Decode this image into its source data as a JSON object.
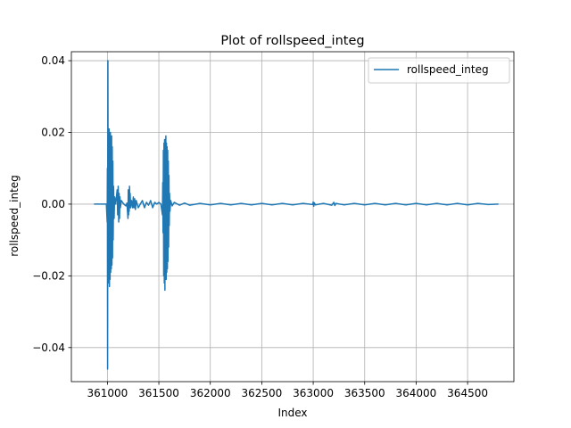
{
  "chart_data": {
    "type": "line",
    "title": "Plot of rollspeed_integ",
    "xlabel": "Index",
    "ylabel": "rollspeed_integ",
    "xlim": [
      360650,
      364950
    ],
    "ylim": [
      -0.0495,
      0.0425
    ],
    "x_ticks": [
      361000,
      361500,
      362000,
      362500,
      363000,
      363500,
      364000,
      364500
    ],
    "x_tick_labels": [
      "361000",
      "361500",
      "362000",
      "362500",
      "363000",
      "363500",
      "364000",
      "364500"
    ],
    "y_ticks": [
      -0.04,
      -0.02,
      0.0,
      0.02,
      0.04
    ],
    "y_tick_labels": [
      "−0.04",
      "−0.02",
      "0.00",
      "0.02",
      "0.04"
    ],
    "grid": true,
    "legend_position": "top-right",
    "series": [
      {
        "name": "rollspeed_integ",
        "color": "#1f77b4",
        "points": [
          [
            360870,
            0.0
          ],
          [
            360970,
            0.0
          ],
          [
            360990,
            0.0
          ],
          [
            360998,
            -0.005
          ],
          [
            361000,
            0.01
          ],
          [
            361002,
            -0.046
          ],
          [
            361005,
            0.04
          ],
          [
            361008,
            -0.022
          ],
          [
            361011,
            0.019
          ],
          [
            361014,
            -0.02
          ],
          [
            361017,
            0.021
          ],
          [
            361020,
            -0.023
          ],
          [
            361023,
            0.018
          ],
          [
            361026,
            -0.021
          ],
          [
            361029,
            0.02
          ],
          [
            361032,
            -0.019
          ],
          [
            361035,
            0.017
          ],
          [
            361038,
            -0.018
          ],
          [
            361041,
            0.019
          ],
          [
            361044,
            -0.017
          ],
          [
            361047,
            0.016
          ],
          [
            361050,
            -0.015
          ],
          [
            361053,
            0.012
          ],
          [
            361056,
            -0.01
          ],
          [
            361060,
            0.005
          ],
          [
            361065,
            -0.004
          ],
          [
            361070,
            0.002
          ],
          [
            361080,
            0.0
          ],
          [
            361095,
            0.004
          ],
          [
            361100,
            -0.003
          ],
          [
            361105,
            0.005
          ],
          [
            361110,
            -0.005
          ],
          [
            361114,
            0.003
          ],
          [
            361118,
            -0.004
          ],
          [
            361122,
            0.002
          ],
          [
            361126,
            -0.001
          ],
          [
            361135,
            0.001
          ],
          [
            361160,
            0.0
          ],
          [
            361180,
            -0.0005
          ],
          [
            361190,
            0.0003
          ],
          [
            361200,
            -0.004
          ],
          [
            361203,
            0.004
          ],
          [
            361206,
            -0.003
          ],
          [
            361209,
            0.004
          ],
          [
            361212,
            -0.002
          ],
          [
            361215,
            0.005
          ],
          [
            361218,
            -0.001
          ],
          [
            361221,
            0.003
          ],
          [
            361226,
            -0.001
          ],
          [
            361235,
            0.001
          ],
          [
            361245,
            -0.001
          ],
          [
            361252,
            0.002
          ],
          [
            361258,
            -0.001
          ],
          [
            361265,
            0.0015
          ],
          [
            361272,
            -0.0015
          ],
          [
            361280,
            0.001
          ],
          [
            361300,
            -0.001
          ],
          [
            361320,
            0.0
          ],
          [
            361340,
            0.001
          ],
          [
            361360,
            -0.001
          ],
          [
            361380,
            0.0005
          ],
          [
            361400,
            -0.0003
          ],
          [
            361420,
            0.001
          ],
          [
            361440,
            -0.001
          ],
          [
            361460,
            0.0005
          ],
          [
            361480,
            0.0
          ],
          [
            361500,
            0.0005
          ],
          [
            361520,
            0.0
          ],
          [
            361535,
            -0.003
          ],
          [
            361538,
            0.006
          ],
          [
            361541,
            -0.008
          ],
          [
            361544,
            0.015
          ],
          [
            361547,
            -0.02
          ],
          [
            361550,
            0.017
          ],
          [
            361553,
            -0.022
          ],
          [
            361556,
            0.018
          ],
          [
            361559,
            -0.024
          ],
          [
            361562,
            0.018
          ],
          [
            361565,
            -0.02
          ],
          [
            361568,
            0.019
          ],
          [
            361571,
            -0.021
          ],
          [
            361574,
            0.017
          ],
          [
            361577,
            -0.019
          ],
          [
            361580,
            0.016
          ],
          [
            361583,
            -0.018
          ],
          [
            361586,
            0.015
          ],
          [
            361589,
            -0.016
          ],
          [
            361592,
            0.012
          ],
          [
            361595,
            -0.012
          ],
          [
            361598,
            0.008
          ],
          [
            361601,
            -0.006
          ],
          [
            361604,
            0.003
          ],
          [
            361608,
            -0.002
          ],
          [
            361615,
            0.001
          ],
          [
            361630,
            -0.0005
          ],
          [
            361650,
            0.0005
          ],
          [
            361700,
            -0.0003
          ],
          [
            361750,
            0.0003
          ],
          [
            361800,
            -0.0003
          ],
          [
            361900,
            0.0002
          ],
          [
            362000,
            -0.0002
          ],
          [
            362100,
            0.0002
          ],
          [
            362200,
            -0.0002
          ],
          [
            362300,
            0.0002
          ],
          [
            362400,
            -0.0002
          ],
          [
            362500,
            0.0002
          ],
          [
            362600,
            -0.0002
          ],
          [
            362700,
            0.0002
          ],
          [
            362800,
            -0.0002
          ],
          [
            362900,
            0.0002
          ],
          [
            362995,
            -0.0001
          ],
          [
            363000,
            0.0006
          ],
          [
            363005,
            -0.0006
          ],
          [
            363010,
            0.0004
          ],
          [
            363020,
            -0.0002
          ],
          [
            363100,
            0.0002
          ],
          [
            363180,
            -0.0003
          ],
          [
            363200,
            0.0005
          ],
          [
            363210,
            -0.0004
          ],
          [
            363220,
            0.0002
          ],
          [
            363300,
            -0.0002
          ],
          [
            363400,
            0.0002
          ],
          [
            363500,
            -0.0002
          ],
          [
            363600,
            0.0002
          ],
          [
            363700,
            -0.0002
          ],
          [
            363800,
            0.0002
          ],
          [
            363900,
            -0.0002
          ],
          [
            364000,
            0.0002
          ],
          [
            364100,
            -0.0002
          ],
          [
            364200,
            0.0002
          ],
          [
            364300,
            -0.0002
          ],
          [
            364400,
            0.0002
          ],
          [
            364500,
            -0.0002
          ],
          [
            364600,
            0.0002
          ],
          [
            364700,
            -0.0001
          ],
          [
            364800,
            0.0
          ]
        ]
      }
    ]
  }
}
